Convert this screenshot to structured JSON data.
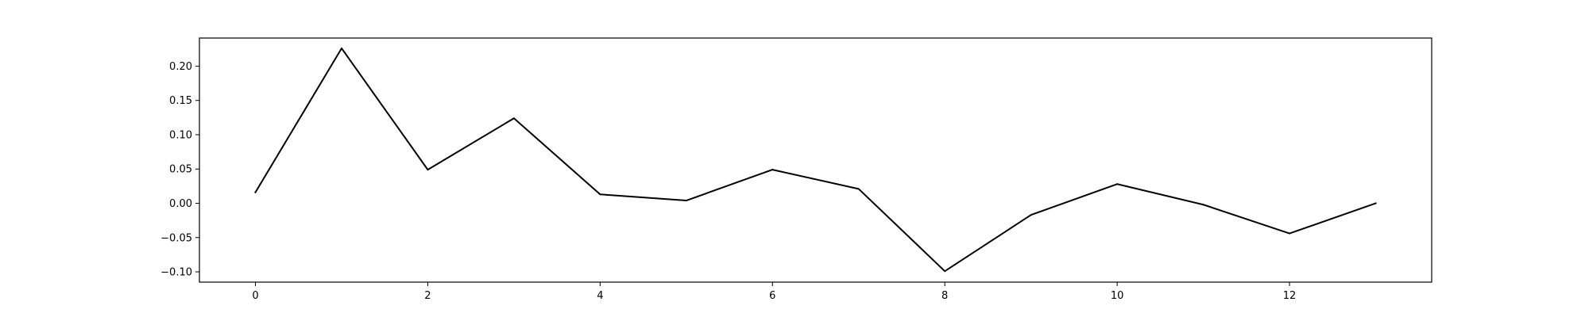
{
  "chart_data": {
    "type": "line",
    "title": "",
    "xlabel": "",
    "ylabel": "",
    "grid": false,
    "legend": "none",
    "xlim": [
      -0.65,
      13.65
    ],
    "ylim": [
      -0.115,
      0.241
    ],
    "xticks": [
      0,
      2,
      4,
      6,
      8,
      10,
      12
    ],
    "xtick_labels": [
      "0",
      "2",
      "4",
      "6",
      "8",
      "10",
      "12"
    ],
    "yticks": [
      -0.1,
      -0.05,
      0.0,
      0.05,
      0.1,
      0.15,
      0.2
    ],
    "ytick_labels": [
      "−0.10",
      "−0.05",
      "0.00",
      "0.05",
      "0.10",
      "0.15",
      "0.20"
    ],
    "series": [
      {
        "color": "#000000",
        "x": [
          0,
          1,
          2,
          3,
          4,
          5,
          6,
          7,
          8,
          9,
          10,
          11,
          12,
          13
        ],
        "values": [
          0.016,
          0.226,
          0.049,
          0.124,
          0.013,
          0.004,
          0.049,
          0.021,
          -0.099,
          -0.017,
          0.028,
          -0.002,
          -0.044,
          0.0
        ]
      }
    ]
  }
}
